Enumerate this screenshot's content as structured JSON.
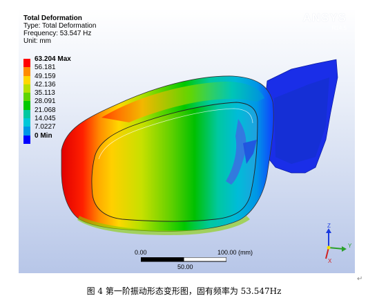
{
  "header": {
    "title": "Total Deformation",
    "type_line": "Type: Total Deformation",
    "frequency_line": "Frequency: 53.547 Hz",
    "unit_line": "Unit: mm"
  },
  "brand": {
    "name": "ANSYS",
    "version": "R14.5"
  },
  "legend": {
    "entries": [
      {
        "label": "63.204 Max",
        "color": "#ff0000"
      },
      {
        "label": "56.181",
        "color": "#ff8c00"
      },
      {
        "label": "49.159",
        "color": "#ffd700"
      },
      {
        "label": "42.136",
        "color": "#b6e000"
      },
      {
        "label": "35.113",
        "color": "#5ed400"
      },
      {
        "label": "28.091",
        "color": "#00c800"
      },
      {
        "label": "21.068",
        "color": "#00c8a0"
      },
      {
        "label": "14.045",
        "color": "#00c8d8"
      },
      {
        "label": "7.0227",
        "color": "#0096e6"
      },
      {
        "label": "0 Min",
        "color": "#0000ff"
      }
    ]
  },
  "scale_bar": {
    "start": "0.00",
    "end": "100.00 (mm)",
    "mid": "50.00"
  },
  "triad": {
    "z": "Z",
    "y": "Y",
    "x": "X"
  },
  "caption": "图 4   第一阶振动形态变形图，固有频率为 53.547Hz",
  "paragraph_mark": "↵"
}
